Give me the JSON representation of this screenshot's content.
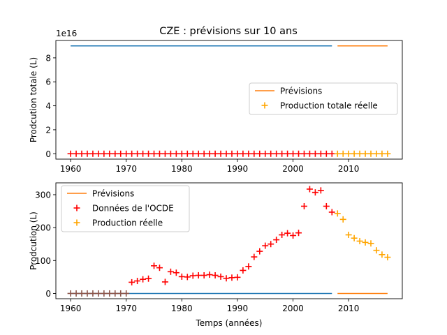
{
  "figure_title": "CZE : prévisions sur 10 ans",
  "colors": {
    "blue": "#1f77b4",
    "orange": "#ff7f0e",
    "red": "#ff0000",
    "gold": "#ffa500",
    "axis": "#000000"
  },
  "chart_data": [
    {
      "type": "line",
      "title": "CZE : prévisions sur 10 ans",
      "xlabel": "",
      "ylabel": "Prodcution totale (L)",
      "offset_text": "1e16",
      "xlim": [
        1957.35,
        2019.65
      ],
      "ylim": [
        -0.45,
        9.45
      ],
      "x_ticks": [
        1960,
        1970,
        1980,
        1990,
        2000,
        2010
      ],
      "y_ticks": [
        0,
        2,
        4,
        6,
        8
      ],
      "y_tick_labels": [
        "0",
        "2",
        "4",
        "6",
        "8"
      ],
      "legend": {
        "location": "center-right",
        "entries": [
          {
            "label": "Prévisions",
            "kind": "line",
            "color": "#ff7f0e"
          },
          {
            "label": "Production totale réelle",
            "kind": "marker",
            "color": "#ffa500"
          }
        ]
      },
      "series": [
        {
          "kind": "line",
          "color": "#1f77b4",
          "x": [
            1960,
            2007
          ],
          "y": [
            9.0,
            9.0
          ]
        },
        {
          "kind": "line",
          "name": "Prévisions",
          "color": "#ff7f0e",
          "x": [
            2008,
            2017
          ],
          "y": [
            9.0,
            9.0
          ]
        },
        {
          "kind": "line",
          "color": "#1f77b4",
          "x": [
            1960,
            2007
          ],
          "y": [
            0,
            0
          ]
        },
        {
          "kind": "marker",
          "color": "#ff0000",
          "x": [
            1960,
            1961,
            1962,
            1963,
            1964,
            1965,
            1966,
            1967,
            1968,
            1969,
            1970,
            1971,
            1972,
            1973,
            1974,
            1975,
            1976,
            1977,
            1978,
            1979,
            1980,
            1981,
            1982,
            1983,
            1984,
            1985,
            1986,
            1987,
            1988,
            1989,
            1990,
            1991,
            1992,
            1993,
            1994,
            1995,
            1996,
            1997,
            1998,
            1999,
            2000,
            2001,
            2002,
            2003,
            2004,
            2005,
            2006,
            2007
          ],
          "y": [
            0,
            0,
            0,
            0,
            0,
            0,
            0,
            0,
            0,
            0,
            0,
            0,
            0,
            0,
            0,
            0,
            0,
            0,
            0,
            0,
            0,
            0,
            0,
            0,
            0,
            0,
            0,
            0,
            0,
            0,
            0,
            0,
            0,
            0,
            0,
            0,
            0,
            0,
            0,
            0,
            0,
            0,
            0,
            0,
            0,
            0,
            0,
            0
          ]
        },
        {
          "kind": "marker",
          "name": "Production totale réelle",
          "color": "#ffa500",
          "x": [
            2008,
            2009,
            2010,
            2011,
            2012,
            2013,
            2014,
            2015,
            2016,
            2017
          ],
          "y": [
            0,
            0,
            0,
            0,
            0,
            0,
            0,
            0,
            0,
            0
          ]
        }
      ]
    },
    {
      "type": "line",
      "title": "",
      "xlabel": "Temps (années)",
      "ylabel": "Prodcution (L)",
      "xlim": [
        1957.35,
        2019.65
      ],
      "ylim": [
        -16,
        336
      ],
      "x_ticks": [
        1960,
        1970,
        1980,
        1990,
        2000,
        2010
      ],
      "y_ticks": [
        0,
        100,
        200,
        300
      ],
      "y_tick_labels": [
        "0",
        "100",
        "200",
        "300"
      ],
      "legend": {
        "location": "upper-left",
        "entries": [
          {
            "label": "Prévisions",
            "kind": "line",
            "color": "#ff7f0e"
          },
          {
            "label": "Données de l'OCDE",
            "kind": "marker",
            "color": "#ff0000"
          },
          {
            "label": "Production réelle",
            "kind": "marker",
            "color": "#ffa500"
          }
        ]
      },
      "series": [
        {
          "kind": "line",
          "color": "#1f77b4",
          "x": [
            1960,
            2007
          ],
          "y": [
            0,
            0
          ]
        },
        {
          "kind": "line",
          "name": "Prévisions",
          "color": "#ff7f0e",
          "x": [
            2008,
            2017
          ],
          "y": [
            0,
            0
          ]
        },
        {
          "kind": "marker",
          "color": "#8c564b",
          "x": [
            1960,
            1961,
            1962,
            1963,
            1964,
            1965,
            1966,
            1967,
            1968,
            1969,
            1970
          ],
          "y": [
            0,
            0,
            0,
            0,
            0,
            0,
            0,
            0,
            0,
            0,
            0
          ]
        },
        {
          "kind": "marker",
          "name": "Données de l'OCDE",
          "color": "#ff0000",
          "x": [
            1971,
            1972,
            1973,
            1974,
            1975,
            1976,
            1977,
            1978,
            1979,
            1980,
            1981,
            1982,
            1983,
            1984,
            1985,
            1986,
            1987,
            1988,
            1989,
            1990,
            1991,
            1992,
            1993,
            1994,
            1995,
            1996,
            1997,
            1998,
            1999,
            2000,
            2001,
            2002,
            2003,
            2004,
            2005,
            2006,
            2007
          ],
          "y": [
            34,
            38,
            43,
            45,
            84,
            78,
            35,
            66,
            63,
            51,
            50,
            54,
            55,
            55,
            57,
            55,
            51,
            46,
            48,
            49,
            70,
            82,
            111,
            128,
            145,
            150,
            163,
            178,
            183,
            176,
            184,
            265,
            317,
            307,
            313,
            265,
            247
          ]
        },
        {
          "kind": "marker",
          "name": "Production réelle",
          "color": "#ffa500",
          "x": [
            2008,
            2009,
            2010,
            2011,
            2012,
            2013,
            2014,
            2015,
            2016,
            2017
          ],
          "y": [
            243,
            225,
            178,
            168,
            159,
            155,
            152,
            131,
            118,
            110
          ]
        }
      ]
    }
  ]
}
